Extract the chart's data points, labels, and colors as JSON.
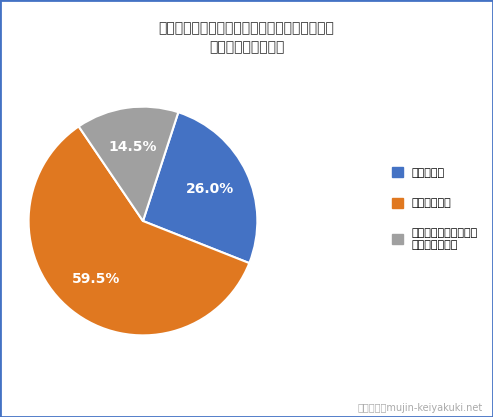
{
  "title": "「原状回復をめぐるトラブルとガイドライン」\nを知っていましたか",
  "slices": [
    26.0,
    59.5,
    14.5
  ],
  "labels": [
    "知っていた",
    "知らなかった",
    "当時は知らなかったが\n今は知っている"
  ],
  "colors": [
    "#4472C4",
    "#E07820",
    "#A0A0A0"
  ],
  "pct_labels": [
    "26.0%",
    "59.5%",
    "14.5%"
  ],
  "startangle": 72,
  "watermark": "アトムくんmujin-keiyakuki.net",
  "background_color": "#FFFFFF",
  "border_color": "#4472C4"
}
